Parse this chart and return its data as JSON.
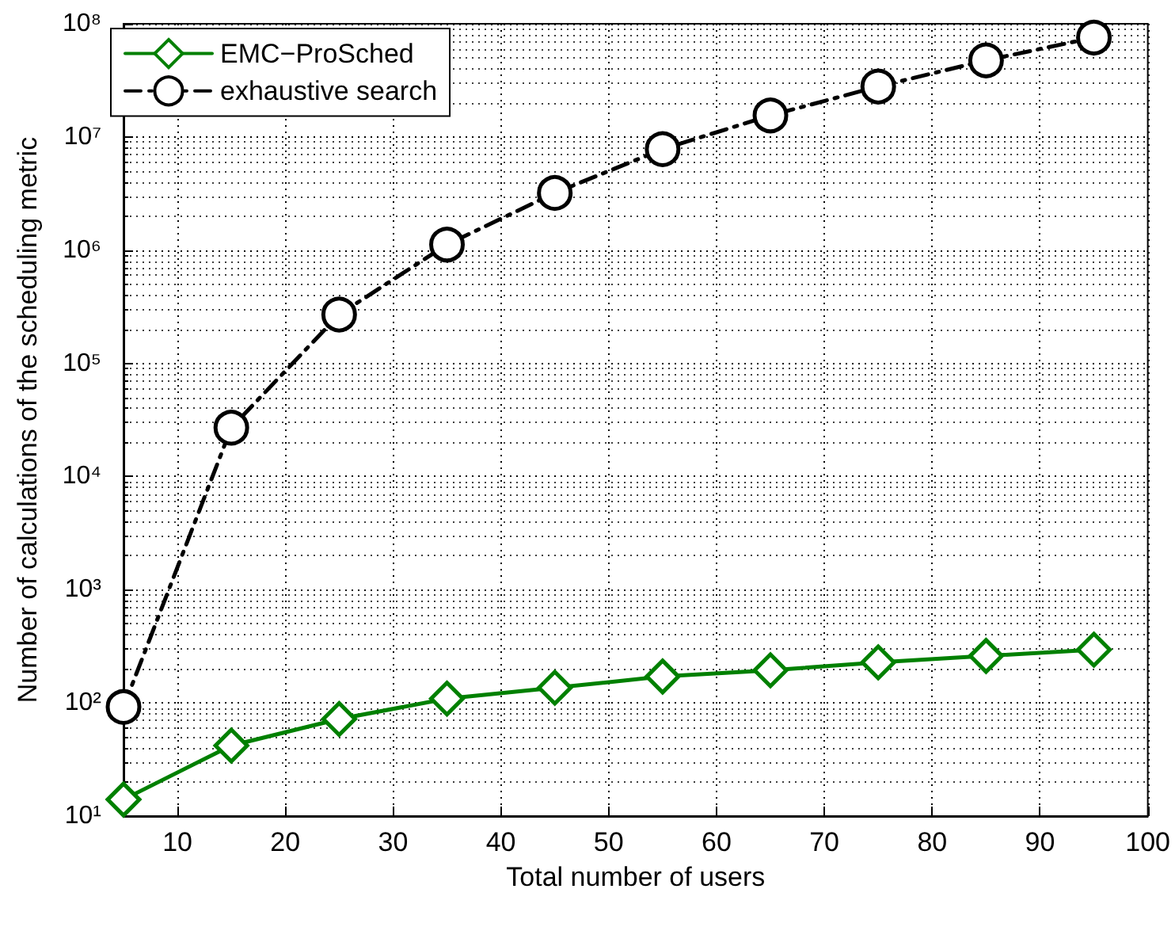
{
  "chart_data": {
    "type": "line",
    "xlabel": "Total number of users",
    "ylabel": "Number of calculations of the scheduling metric",
    "x": [
      5,
      15,
      25,
      35,
      45,
      55,
      65,
      75,
      85,
      95
    ],
    "series": [
      {
        "name": "EMC−ProSched",
        "color": "#008000",
        "marker": "diamond",
        "line_style": "solid",
        "values": [
          14,
          42,
          72,
          109,
          136,
          171,
          194,
          228,
          260,
          295
        ]
      },
      {
        "name": "exhaustive search",
        "color": "#000000",
        "marker": "circle",
        "line_style": "dashed",
        "values": [
          92,
          27000,
          270000,
          1120000,
          3200000,
          7800000,
          15500000,
          27900000,
          47500000,
          75500000
        ]
      }
    ],
    "xlim": [
      5,
      100
    ],
    "xticks": [
      10,
      20,
      30,
      40,
      50,
      60,
      70,
      80,
      90,
      100
    ],
    "ylim": [
      10,
      100000000
    ],
    "yticks": [
      {
        "value": 10,
        "label": "10¹"
      },
      {
        "value": 100,
        "label": "10²"
      },
      {
        "value": 1000,
        "label": "10³"
      },
      {
        "value": 10000,
        "label": "10⁴"
      },
      {
        "value": 100000,
        "label": "10⁵"
      },
      {
        "value": 1000000,
        "label": "10⁶"
      },
      {
        "value": 10000000,
        "label": "10⁷"
      },
      {
        "value": 100000000,
        "label": "10⁸"
      }
    ],
    "log": "y",
    "grid": true,
    "legend": "top left"
  }
}
